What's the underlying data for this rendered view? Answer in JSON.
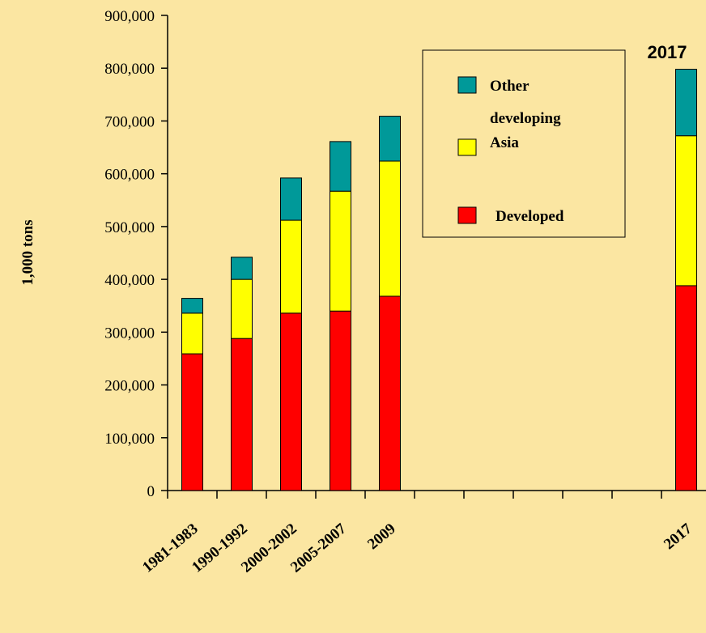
{
  "chart_data": {
    "type": "stacked_bar",
    "y_label": "1,000 tons",
    "annotation": "2017",
    "categories": [
      "1981-1983",
      "1990-1992",
      "2000-2002",
      "2005-2007",
      "2009",
      null,
      null,
      null,
      null,
      null,
      "2017"
    ],
    "series": [
      {
        "name": "Developed",
        "color": "#ff0000",
        "values": [
          259000,
          288000,
          336000,
          340000,
          368000,
          null,
          null,
          null,
          null,
          null,
          388000
        ]
      },
      {
        "name": "developing Asia",
        "color": "#ffff00",
        "values": [
          77000,
          112000,
          176000,
          227000,
          256000,
          null,
          null,
          null,
          null,
          null,
          284000
        ]
      },
      {
        "name": "Other",
        "color": "#009999",
        "values": [
          28000,
          42000,
          80000,
          94000,
          85000,
          null,
          null,
          null,
          null,
          null,
          126000
        ]
      }
    ],
    "ylim": [
      0,
      900000
    ],
    "yticks": [
      0,
      {
        "value": 100000,
        "label": "100,000"
      },
      {
        "value": 200000,
        "label": "200,000"
      },
      {
        "value": 300000,
        "label": "300,000"
      },
      {
        "value": 400000,
        "label": "400,000"
      },
      {
        "value": 500000,
        "label": "500,000"
      },
      {
        "value": 600000,
        "label": "600,000"
      },
      {
        "value": 700000,
        "label": "700,000"
      },
      {
        "value": 800000,
        "label": "800,000"
      },
      {
        "value": 900000,
        "label": "900,000"
      }
    ],
    "grid": false
  }
}
